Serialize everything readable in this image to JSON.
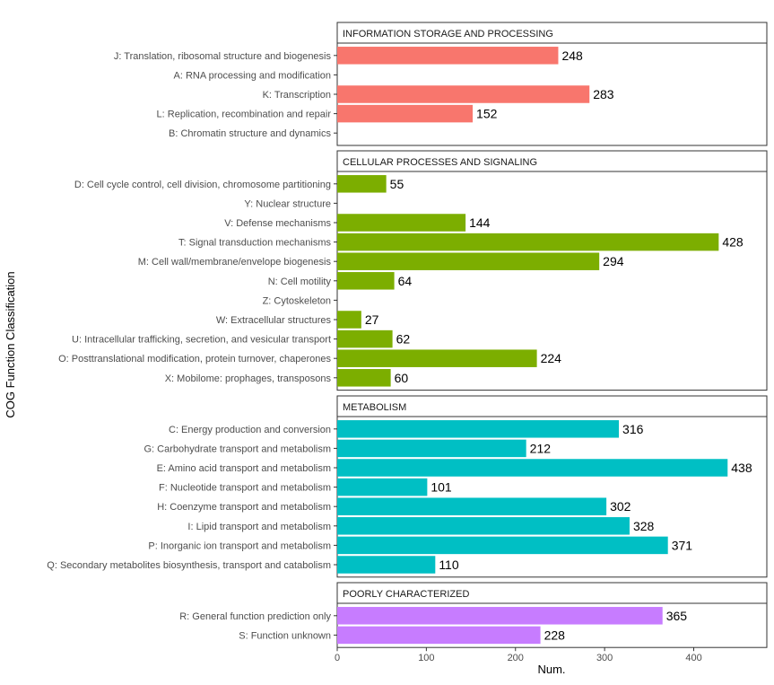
{
  "chart_data": {
    "type": "bar",
    "orientation": "horizontal",
    "xlabel": "Num.",
    "ylabel": "COG Function Classification",
    "xlim": [
      0,
      482
    ],
    "x_ticks": [
      0,
      100,
      200,
      300,
      400
    ],
    "grid": false,
    "legend": "none",
    "panels": [
      {
        "title": "INFORMATION STORAGE AND PROCESSING",
        "color": "#F8766D",
        "categories": [
          "J: Translation, ribosomal structure and biogenesis",
          "A: RNA processing and modification",
          "K: Transcription",
          "L: Replication, recombination and repair",
          "B: Chromatin structure and dynamics"
        ],
        "values": [
          248,
          null,
          283,
          152,
          null
        ]
      },
      {
        "title": "CELLULAR PROCESSES AND SIGNALING",
        "color": "#7CAE00",
        "categories": [
          "D: Cell cycle control, cell division, chromosome partitioning",
          "Y: Nuclear structure",
          "V: Defense mechanisms",
          "T: Signal transduction mechanisms",
          "M: Cell wall/membrane/envelope biogenesis",
          "N: Cell motility",
          "Z: Cytoskeleton",
          "W: Extracellular structures",
          "U: Intracellular trafficking, secretion, and vesicular transport",
          "O: Posttranslational modification, protein turnover, chaperones",
          "X: Mobilome: prophages, transposons"
        ],
        "values": [
          55,
          null,
          144,
          428,
          294,
          64,
          null,
          27,
          62,
          224,
          60
        ]
      },
      {
        "title": "METABOLISM",
        "color": "#00BFC4",
        "categories": [
          "C: Energy production and conversion",
          "G: Carbohydrate transport and metabolism",
          "E: Amino acid transport and metabolism",
          "F: Nucleotide transport and metabolism",
          "H: Coenzyme transport and metabolism",
          "I: Lipid transport and metabolism",
          "P: Inorganic ion transport and metabolism",
          "Q: Secondary metabolites biosynthesis, transport and catabolism"
        ],
        "values": [
          316,
          212,
          438,
          101,
          302,
          328,
          371,
          110
        ]
      },
      {
        "title": "POORLY CHARACTERIZED",
        "color": "#C77CFF",
        "categories": [
          "R: General function prediction only",
          "S: Function unknown"
        ],
        "values": [
          365,
          228
        ]
      }
    ]
  }
}
